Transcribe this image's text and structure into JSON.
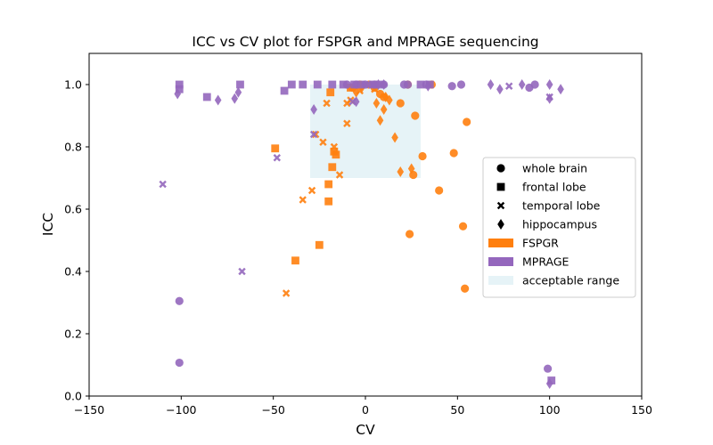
{
  "chart_data": {
    "type": "scatter",
    "title": "ICC vs CV plot for FSPGR and MPRAGE sequencing",
    "xlabel": "CV",
    "ylabel": "ICC",
    "xlim": [
      -150,
      150
    ],
    "ylim": [
      0.0,
      1.1
    ],
    "xticks": [
      -150,
      -100,
      -50,
      0,
      50,
      100,
      150
    ],
    "xtick_labels": [
      "−150",
      "−100",
      "−50",
      "0",
      "50",
      "100",
      "150"
    ],
    "yticks": [
      0.0,
      0.2,
      0.4,
      0.6,
      0.8,
      1.0
    ],
    "ytick_labels": [
      "0.0",
      "0.2",
      "0.4",
      "0.6",
      "0.8",
      "1.0"
    ],
    "grid": false,
    "legend_position": "center-right",
    "colors": {
      "FSPGR": "#ff7f0e",
      "MPRAGE": "#9467bd",
      "acceptable": "#add8e6"
    },
    "acceptable_range": {
      "x": [
        -30,
        30
      ],
      "y": [
        0.7,
        1.0
      ]
    },
    "legend": [
      {
        "label": "whole brain",
        "marker": "circle",
        "color": "#000000"
      },
      {
        "label": "frontal lobe",
        "marker": "square",
        "color": "#000000"
      },
      {
        "label": "temporal lobe",
        "marker": "x",
        "color": "#000000"
      },
      {
        "label": "hippocampus",
        "marker": "diamond",
        "color": "#000000"
      },
      {
        "label": "FSPGR",
        "marker": "patch",
        "color": "#ff7f0e"
      },
      {
        "label": "MPRAGE",
        "marker": "patch",
        "color": "#9467bd"
      },
      {
        "label": "acceptable range",
        "marker": "patch",
        "color": "#add8e6"
      }
    ],
    "series": [
      {
        "name": "FSPGR",
        "region": "whole brain",
        "marker": "circle",
        "color": "#ff7f0e",
        "points": [
          [
            -7,
            0.99
          ],
          [
            -3,
            1.0
          ],
          [
            2,
            1.0
          ],
          [
            5,
            0.99
          ],
          [
            8,
            0.97
          ],
          [
            10,
            0.96
          ],
          [
            19,
            0.94
          ],
          [
            23,
            1.0
          ],
          [
            27,
            0.9
          ],
          [
            31,
            0.77
          ],
          [
            36,
            1.0
          ],
          [
            40,
            0.66
          ],
          [
            48,
            0.78
          ],
          [
            53,
            0.545
          ],
          [
            54,
            0.345
          ],
          [
            55,
            0.88
          ],
          [
            24,
            0.52
          ],
          [
            26,
            0.71
          ]
        ]
      },
      {
        "name": "FSPGR",
        "region": "frontal lobe",
        "marker": "square",
        "color": "#ff7f0e",
        "points": [
          [
            -49,
            0.795
          ],
          [
            -38,
            0.435
          ],
          [
            -25,
            0.485
          ],
          [
            -20,
            0.68
          ],
          [
            -20,
            0.625
          ],
          [
            -18,
            0.735
          ],
          [
            -17,
            0.785
          ],
          [
            -16,
            0.775
          ],
          [
            -19,
            0.975
          ],
          [
            -8,
            0.99
          ]
        ]
      },
      {
        "name": "FSPGR",
        "region": "temporal lobe",
        "marker": "x",
        "color": "#ff7f0e",
        "points": [
          [
            -43,
            0.33
          ],
          [
            -34,
            0.63
          ],
          [
            -29,
            0.66
          ],
          [
            -27,
            0.84
          ],
          [
            -23,
            0.815
          ],
          [
            -21,
            0.94
          ],
          [
            -17,
            0.8
          ],
          [
            -14,
            0.71
          ],
          [
            -10,
            0.875
          ],
          [
            -10,
            0.94
          ],
          [
            -8,
            0.95
          ],
          [
            -3,
            0.98
          ],
          [
            5,
            0.985
          ]
        ]
      },
      {
        "name": "FSPGR",
        "region": "hippocampus",
        "marker": "diamond",
        "color": "#ff7f0e",
        "points": [
          [
            -5,
            0.975
          ],
          [
            -2,
            0.99
          ],
          [
            6,
            0.94
          ],
          [
            8,
            0.885
          ],
          [
            10,
            0.92
          ],
          [
            11,
            0.96
          ],
          [
            13,
            0.95
          ],
          [
            16,
            0.83
          ],
          [
            19,
            0.72
          ],
          [
            25,
            0.73
          ]
        ]
      },
      {
        "name": "MPRAGE",
        "region": "whole brain",
        "marker": "circle",
        "color": "#9467bd",
        "points": [
          [
            -101,
            0.305
          ],
          [
            -101,
            0.107
          ],
          [
            -10,
            1.0
          ],
          [
            -5,
            1.0
          ],
          [
            0,
            1.0
          ],
          [
            5,
            1.0
          ],
          [
            10,
            1.0
          ],
          [
            21,
            1.0
          ],
          [
            23,
            1.0
          ],
          [
            33,
            1.0
          ],
          [
            47,
            0.995
          ],
          [
            52,
            1.0
          ],
          [
            89,
            0.99
          ],
          [
            92,
            1.0
          ],
          [
            99,
            0.088
          ]
        ]
      },
      {
        "name": "MPRAGE",
        "region": "frontal lobe",
        "marker": "square",
        "color": "#9467bd",
        "points": [
          [
            -101,
            1.0
          ],
          [
            -101,
            0.985
          ],
          [
            -86,
            0.96
          ],
          [
            -68,
            1.0
          ],
          [
            -44,
            0.98
          ],
          [
            -40,
            1.0
          ],
          [
            -34,
            1.0
          ],
          [
            -26,
            1.0
          ],
          [
            -18,
            1.0
          ],
          [
            -12,
            1.0
          ],
          [
            -6,
            1.0
          ],
          [
            -2,
            1.0
          ],
          [
            4,
            1.0
          ],
          [
            8,
            1.0
          ],
          [
            30,
            1.0
          ],
          [
            35,
            1.0
          ],
          [
            101,
            0.05
          ]
        ]
      },
      {
        "name": "MPRAGE",
        "region": "temporal lobe",
        "marker": "x",
        "color": "#9467bd",
        "points": [
          [
            -110,
            0.68
          ],
          [
            -67,
            0.4
          ],
          [
            -48,
            0.765
          ],
          [
            -28,
            0.84
          ],
          [
            -7,
            0.945
          ],
          [
            0,
            1.0
          ],
          [
            4,
            1.0
          ],
          [
            78,
            0.995
          ],
          [
            100,
            0.96
          ]
        ]
      },
      {
        "name": "MPRAGE",
        "region": "hippocampus",
        "marker": "diamond",
        "color": "#9467bd",
        "points": [
          [
            -102,
            0.97
          ],
          [
            -80,
            0.95
          ],
          [
            -71,
            0.955
          ],
          [
            -69,
            0.975
          ],
          [
            -28,
            0.92
          ],
          [
            -5,
            0.945
          ],
          [
            7,
            1.0
          ],
          [
            10,
            1.0
          ],
          [
            34,
            0.995
          ],
          [
            68,
            1.0
          ],
          [
            73,
            0.985
          ],
          [
            85,
            1.0
          ],
          [
            100,
            1.0
          ],
          [
            100,
            0.955
          ],
          [
            100,
            0.04
          ],
          [
            106,
            0.985
          ]
        ]
      }
    ]
  }
}
